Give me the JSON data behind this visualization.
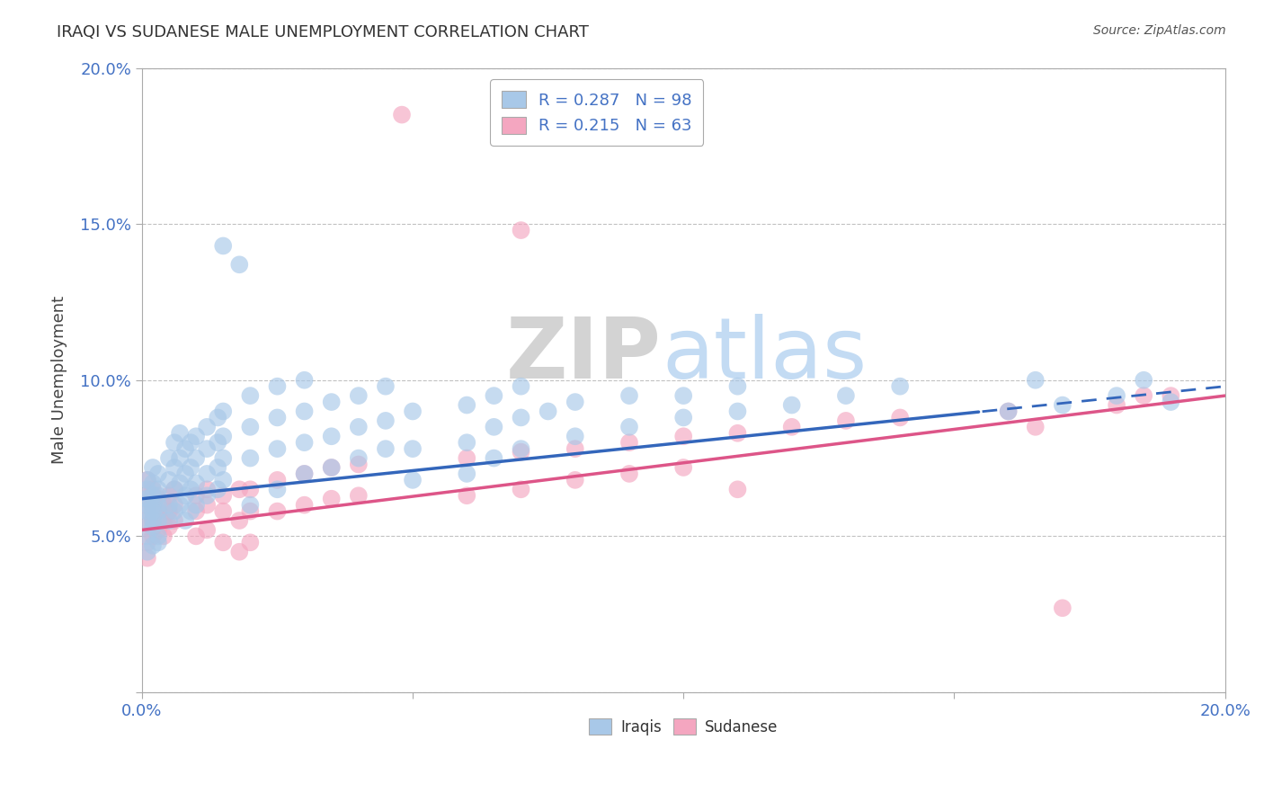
{
  "title": "IRAQI VS SUDANESE MALE UNEMPLOYMENT CORRELATION CHART",
  "source": "Source: ZipAtlas.com",
  "ylabel": "Male Unemployment",
  "xlim": [
    0.0,
    0.2
  ],
  "ylim": [
    0.0,
    0.2
  ],
  "iraqi_R": "0.287",
  "iraqi_N": "98",
  "sudanese_R": "0.215",
  "sudanese_N": "63",
  "iraqi_color": "#a8c8e8",
  "sudanese_color": "#f4a6c0",
  "iraqi_line_color": "#3366bb",
  "sudanese_line_color": "#dd5588",
  "background_color": "#ffffff",
  "iraqi_line_start_y": 0.062,
  "iraqi_line_end_y": 0.098,
  "sudanese_line_start_y": 0.052,
  "sudanese_line_end_y": 0.095,
  "watermark_zip": "ZIP",
  "watermark_atlas": "atlas"
}
